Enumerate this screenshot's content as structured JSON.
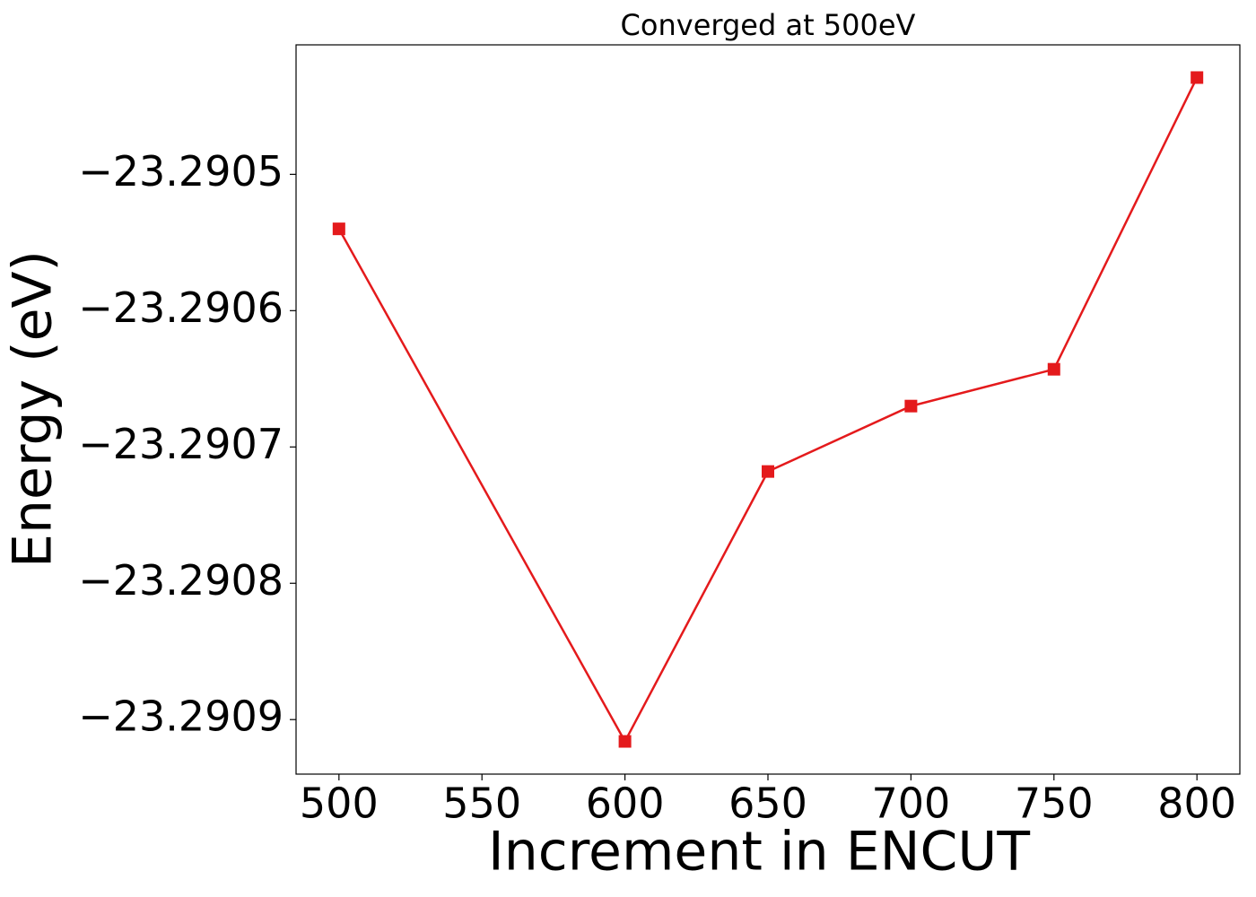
{
  "chart_data": {
    "type": "line",
    "title": "Converged at 500eV",
    "x_label": "Increment in ENCUT",
    "y_label": "Energy (eV)",
    "x": [
      500,
      600,
      650,
      700,
      750,
      800
    ],
    "values": [
      -23.29054,
      -23.290916,
      -23.290718,
      -23.29067,
      -23.290643,
      -23.290429
    ],
    "color": "#e41a1c",
    "marker": "square",
    "xlim": [
      485,
      815
    ],
    "xticks": [
      500,
      550,
      600,
      650,
      700,
      750,
      800
    ],
    "ylim": [
      -23.29094,
      -23.290405
    ],
    "yticks": [
      {
        "value": -23.2909,
        "label": "−23.2909"
      },
      {
        "value": -23.2908,
        "label": "−23.2908"
      },
      {
        "value": -23.2907,
        "label": "−23.2907"
      },
      {
        "value": -23.2906,
        "label": "−23.2906"
      },
      {
        "value": -23.2905,
        "label": "−23.2905"
      }
    ],
    "grid": false
  }
}
